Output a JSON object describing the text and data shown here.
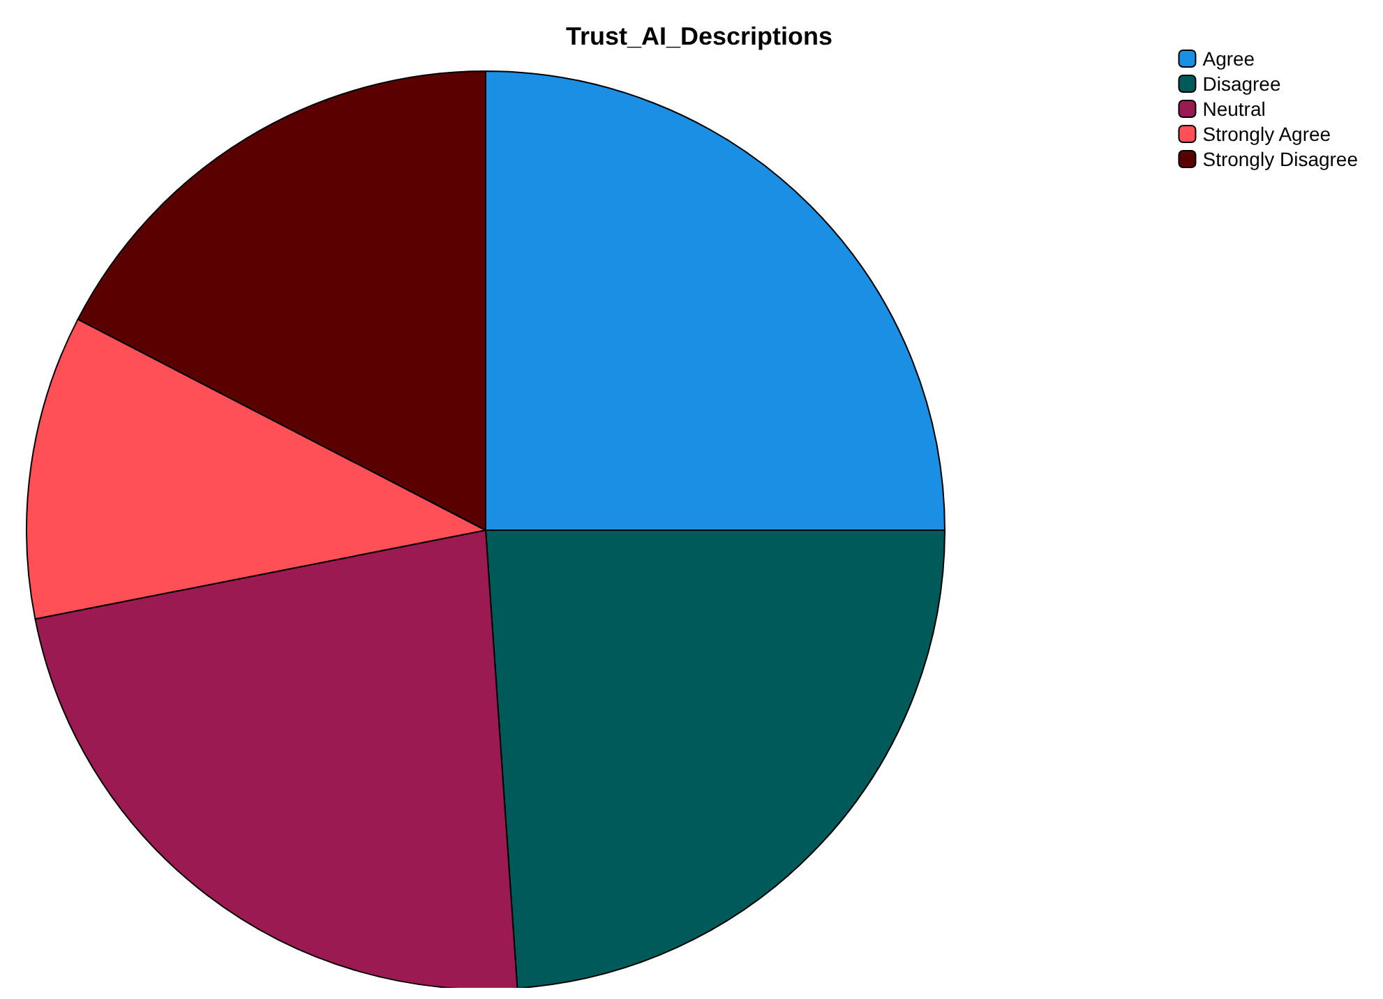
{
  "chart_data": {
    "type": "pie",
    "title": "Trust_AI_Descriptions",
    "categories": [
      "Agree",
      "Disagree",
      "Neutral",
      "Strongly Agree",
      "Strongly Disagree"
    ],
    "values": [
      25,
      23.9,
      23,
      10.7,
      17.4
    ],
    "colors": [
      "#1a8fe3",
      "#005a5a",
      "#9c1a52",
      "#ff5057",
      "#5a0000"
    ],
    "legend": "top right"
  }
}
